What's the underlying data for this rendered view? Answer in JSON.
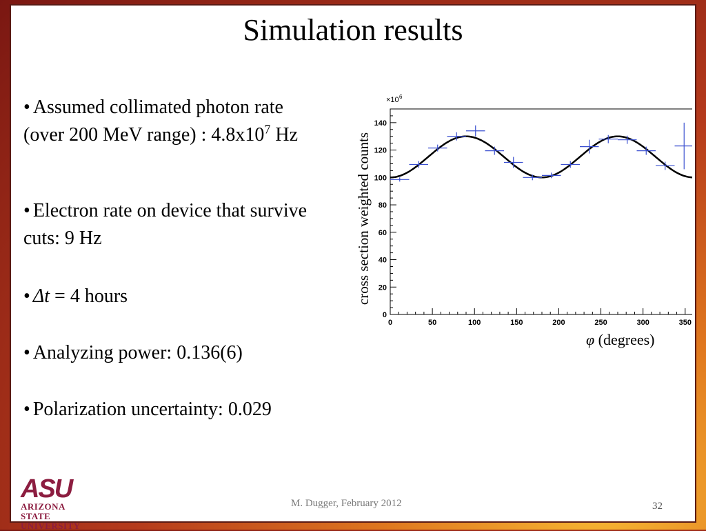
{
  "slide": {
    "title": "Simulation results",
    "bullets": {
      "b1_text": "Assumed collimated photon rate (over 200 MeV range) : 4.8x10",
      "b1_sup": "7",
      "b1_tail": " Hz",
      "b2_text": "Electron rate on device that survive cuts: 9 Hz",
      "b3_var": "Δt",
      "b3_text": " = 4 hours",
      "b4_text": "Analyzing power: 0.136(6)",
      "b5_text": "Polarization uncertainty: 0.029"
    },
    "bullet_char": "•",
    "footer": "M. Dugger, February 2012",
    "page_number": "32",
    "logo": {
      "mark": "ASU",
      "line1": "ARIZONA STATE",
      "line2": "UNIVERSITY",
      "color": "#8c1d40"
    }
  },
  "chart_data": {
    "type": "scatter",
    "ylabel": "cross section weighted counts",
    "xlabel_var": "φ",
    "xlabel_text": " (degrees)",
    "y_multiplier": "×10",
    "y_multiplier_exp": "6",
    "xlim": [
      0,
      360
    ],
    "ylim": [
      0,
      150
    ],
    "x_ticks": [
      0,
      50,
      100,
      150,
      200,
      250,
      300,
      350
    ],
    "y_ticks": [
      0,
      20,
      40,
      60,
      80,
      100,
      120,
      140
    ],
    "points": [
      {
        "x": 11.25,
        "y": 98.5,
        "xerr": 11.25,
        "yerr": 1.5
      },
      {
        "x": 33.75,
        "y": 109.5,
        "xerr": 11.25,
        "yerr": 2.5
      },
      {
        "x": 56.25,
        "y": 121.5,
        "xerr": 11.25,
        "yerr": 2.5
      },
      {
        "x": 78.75,
        "y": 130,
        "xerr": 11.25,
        "yerr": 3
      },
      {
        "x": 101.25,
        "y": 134,
        "xerr": 11.25,
        "yerr": 4
      },
      {
        "x": 123.75,
        "y": 119.5,
        "xerr": 11.25,
        "yerr": 3
      },
      {
        "x": 146.25,
        "y": 111,
        "xerr": 11.25,
        "yerr": 4
      },
      {
        "x": 168.75,
        "y": 100,
        "xerr": 11.25,
        "yerr": 2
      },
      {
        "x": 191.25,
        "y": 101.5,
        "xerr": 11.25,
        "yerr": 2
      },
      {
        "x": 213.75,
        "y": 109.5,
        "xerr": 11.25,
        "yerr": 2.5
      },
      {
        "x": 236.25,
        "y": 122.5,
        "xerr": 11.25,
        "yerr": 5
      },
      {
        "x": 258.75,
        "y": 128,
        "xerr": 11.25,
        "yerr": 3
      },
      {
        "x": 281.25,
        "y": 127.5,
        "xerr": 11.25,
        "yerr": 3
      },
      {
        "x": 303.75,
        "y": 119.5,
        "xerr": 11.25,
        "yerr": 3
      },
      {
        "x": 326.25,
        "y": 108.5,
        "xerr": 11.25,
        "yerr": 3
      },
      {
        "x": 348.75,
        "y": 123,
        "xerr": 11.25,
        "yerr": 17
      }
    ],
    "fit": {
      "baseline": 115,
      "amplitude": 15,
      "period_deg": 180,
      "phase_deg": 0
    },
    "colors": {
      "points": "#3a4fd0",
      "fit": "#000000",
      "axis": "#000000"
    }
  }
}
